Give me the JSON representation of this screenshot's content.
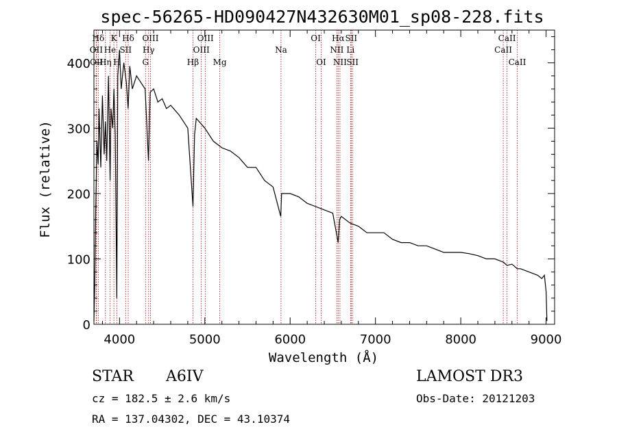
{
  "chart_data": {
    "type": "line",
    "title": "spec-56265-HD090427N432630M01_sp08-228.fits",
    "xlabel": "Wavelength (Å)",
    "ylabel": "Flux (relative)",
    "xlim": [
      3700,
      9100
    ],
    "ylim": [
      0,
      450
    ],
    "x_ticks": [
      4000,
      5000,
      6000,
      7000,
      8000,
      9000
    ],
    "y_ticks": [
      0,
      100,
      200,
      300,
      400
    ],
    "series": [
      {
        "name": "flux",
        "x": [
          3700,
          3710,
          3720,
          3735,
          3750,
          3760,
          3780,
          3800,
          3820,
          3835,
          3850,
          3870,
          3890,
          3900,
          3920,
          3935,
          3950,
          3968,
          3980,
          4000,
          4020,
          4050,
          4080,
          4101,
          4120,
          4150,
          4200,
          4250,
          4300,
          4340,
          4360,
          4400,
          4450,
          4500,
          4550,
          4600,
          4700,
          4800,
          4861,
          4880,
          4900,
          5000,
          5100,
          5200,
          5300,
          5400,
          5500,
          5600,
          5700,
          5800,
          5890,
          5900,
          6000,
          6100,
          6200,
          6300,
          6400,
          6500,
          6563,
          6580,
          6600,
          6700,
          6800,
          6900,
          7000,
          7100,
          7200,
          7300,
          7400,
          7500,
          7600,
          7700,
          7800,
          7900,
          8000,
          8100,
          8200,
          8300,
          8400,
          8500,
          8542,
          8600,
          8662,
          8700,
          8800,
          8900,
          8950,
          8980,
          9000,
          9010
        ],
        "values": [
          5,
          60,
          165,
          280,
          245,
          330,
          240,
          350,
          260,
          310,
          250,
          380,
          220,
          330,
          300,
          360,
          290,
          40,
          380,
          420,
          360,
          400,
          370,
          330,
          395,
          360,
          380,
          370,
          360,
          250,
          355,
          360,
          340,
          345,
          330,
          335,
          320,
          300,
          180,
          290,
          315,
          300,
          280,
          270,
          265,
          255,
          240,
          240,
          220,
          210,
          165,
          200,
          200,
          195,
          185,
          180,
          175,
          170,
          125,
          160,
          165,
          155,
          150,
          140,
          140,
          140,
          130,
          125,
          125,
          120,
          120,
          115,
          110,
          110,
          110,
          108,
          105,
          100,
          100,
          95,
          90,
          92,
          85,
          85,
          80,
          75,
          70,
          75,
          50,
          5
        ]
      }
    ],
    "line_markers": [
      {
        "label": "Hδ",
        "wave": 3751,
        "row": 1
      },
      {
        "label": "OII",
        "wave": 3727,
        "row": 2
      },
      {
        "label": "OII",
        "wave": 3730,
        "row": 3
      },
      {
        "label": "Hη",
        "wave": 3835,
        "row": 3
      },
      {
        "label": "K",
        "wave": 3934,
        "row": 1
      },
      {
        "label": "He",
        "wave": 3889,
        "row": 2
      },
      {
        "label": "H",
        "wave": 3969,
        "row": 3
      },
      {
        "label": "Hδ",
        "wave": 4102,
        "row": 1
      },
      {
        "label": "SII",
        "wave": 4072,
        "row": 2
      },
      {
        "label": "OIII",
        "wave": 4363,
        "row": 1
      },
      {
        "label": "Hγ",
        "wave": 4341,
        "row": 2
      },
      {
        "label": "G",
        "wave": 4305,
        "row": 3
      },
      {
        "label": "OIII",
        "wave": 5007,
        "row": 1
      },
      {
        "label": "OIII",
        "wave": 4959,
        "row": 2
      },
      {
        "label": "Hβ",
        "wave": 4861,
        "row": 3
      },
      {
        "label": "Mg",
        "wave": 5175,
        "row": 3
      },
      {
        "label": "Na",
        "wave": 5893,
        "row": 2
      },
      {
        "label": "OI",
        "wave": 6300,
        "row": 1
      },
      {
        "label": "OI",
        "wave": 6364,
        "row": 3
      },
      {
        "label": "Hα",
        "wave": 6563,
        "row": 1
      },
      {
        "label": "NII",
        "wave": 6548,
        "row": 2
      },
      {
        "label": "NII",
        "wave": 6584,
        "row": 3
      },
      {
        "label": "SII",
        "wave": 6716,
        "row": 1
      },
      {
        "label": "Li",
        "wave": 6708,
        "row": 2
      },
      {
        "label": "SII",
        "wave": 6731,
        "row": 3
      },
      {
        "label": "CaII",
        "wave": 8542,
        "row": 1
      },
      {
        "label": "CaII",
        "wave": 8498,
        "row": 2
      },
      {
        "label": "CaII",
        "wave": 8662,
        "row": 3
      }
    ]
  },
  "info": {
    "object_class": "STAR",
    "subclass": "A6IV",
    "redshift": "cz = 182.5 ± 2.6 km/s",
    "coordinates": "RA = 137.04302, DEC =  43.10374",
    "survey": "LAMOST DR3",
    "obs_date": "Obs-Date: 20121203"
  }
}
